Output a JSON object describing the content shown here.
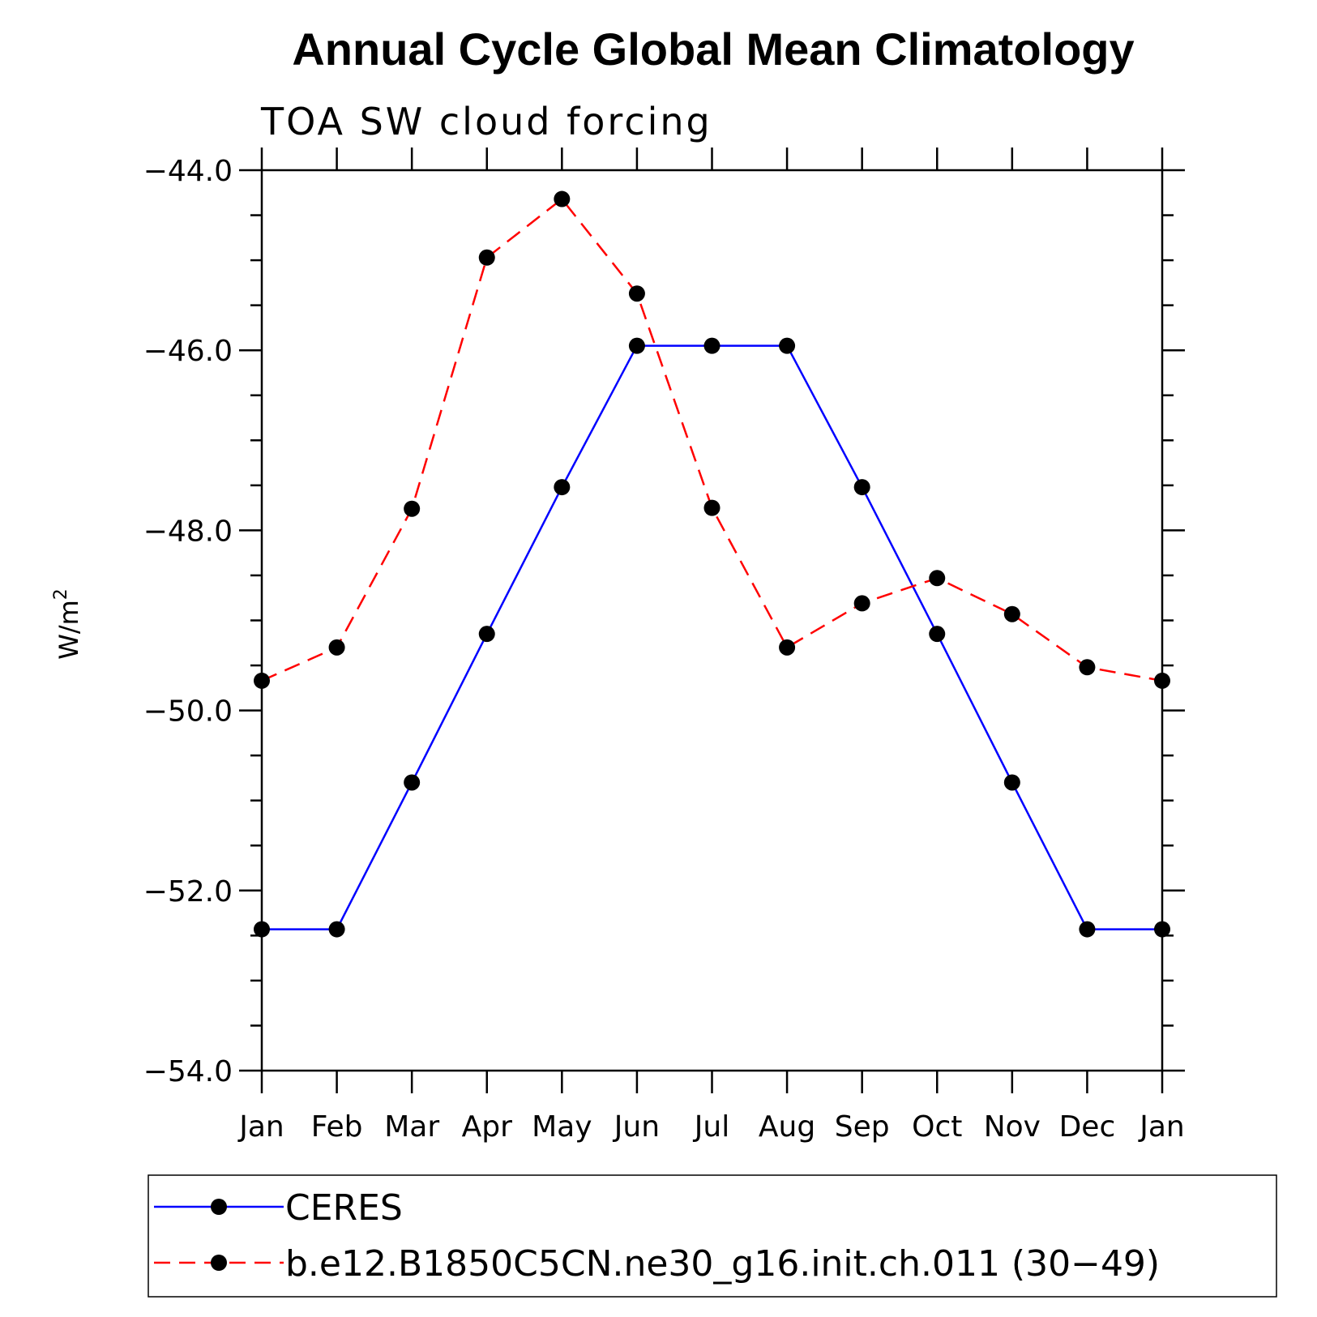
{
  "chart_data": {
    "type": "line",
    "title": "Annual Cycle Global Mean Climatology",
    "subtitle": "TOA SW cloud forcing",
    "ylabel": "W/m",
    "ylabel_superscript": "2",
    "xlabel": "",
    "categories": [
      "Jan",
      "Feb",
      "Mar",
      "Apr",
      "May",
      "Jun",
      "Jul",
      "Aug",
      "Sep",
      "Oct",
      "Nov",
      "Dec",
      "Jan"
    ],
    "ylim": [
      -54.0,
      -44.0
    ],
    "yticks": [
      -44.0,
      -46.0,
      -48.0,
      -50.0,
      -52.0,
      -54.0
    ],
    "ytick_labels": [
      "−44.0",
      "−46.0",
      "−48.0",
      "−50.0",
      "−52.0",
      "−54.0"
    ],
    "grid": false,
    "legend_position": "bottom",
    "series": [
      {
        "name": "CERES",
        "color": "#0000ff",
        "line_style": "solid",
        "marker": "filled-circle",
        "values": [
          -52.43,
          -52.43,
          -50.8,
          -49.15,
          -47.52,
          -45.95,
          -45.95,
          -45.95,
          -47.52,
          -49.15,
          -50.8,
          -52.43,
          -52.43
        ]
      },
      {
        "name": "b.e12.B1850C5CN.ne30_g16.init.ch.011 (30−49)",
        "color": "#ff0000",
        "line_style": "dashed",
        "marker": "filled-circle",
        "values": [
          -49.67,
          -49.3,
          -47.76,
          -44.97,
          -44.32,
          -45.37,
          -47.75,
          -49.3,
          -48.81,
          -48.53,
          -48.93,
          -49.52,
          -49.67
        ]
      }
    ]
  }
}
